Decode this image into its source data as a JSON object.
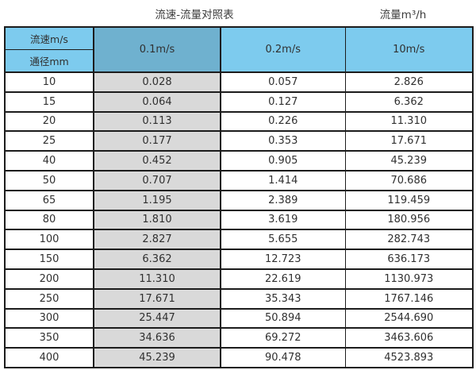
{
  "titles": {
    "main": "流速-流量对照表",
    "right": "流量m³/h"
  },
  "colors": {
    "header_blue": "#7DCBEE",
    "highlight_header_blue": "#6FB1CF",
    "highlight_column_gray": "#D9D9D9",
    "border": "#1C1C1C",
    "text": "#303030",
    "title_text": "#3A3A3A"
  },
  "chart_data": {
    "type": "table",
    "title": "流速-流量对照表",
    "right_title": "流量m³/h",
    "corner_labels": {
      "top": "流速m/s",
      "bottom": "通径mm"
    },
    "velocity_columns": [
      "0.1m/s",
      "0.2m/s",
      "10m/s"
    ],
    "highlighted_column": "0.1m/s",
    "diameters_mm": [
      10,
      15,
      20,
      25,
      40,
      50,
      65,
      80,
      100,
      150,
      200,
      250,
      300,
      350,
      400
    ],
    "series": [
      {
        "name": "0.1m/s",
        "values": [
          "0.028",
          "0.064",
          "0.113",
          "0.177",
          "0.452",
          "0.707",
          "1.195",
          "1.810",
          "2.827",
          "6.362",
          "11.310",
          "17.671",
          "25.447",
          "34.636",
          "45.239"
        ]
      },
      {
        "name": "0.2m/s",
        "values": [
          "0.057",
          "0.127",
          "0.226",
          "0.353",
          "0.905",
          "1.414",
          "2.389",
          "3.619",
          "5.655",
          "12.723",
          "22.619",
          "35.343",
          "50.894",
          "69.272",
          "90.478"
        ]
      },
      {
        "name": "10m/s",
        "values": [
          "2.826",
          "6.362",
          "11.310",
          "17.671",
          "45.239",
          "70.686",
          "119.459",
          "180.956",
          "282.743",
          "636.173",
          "1130.973",
          "1767.146",
          "2544.690",
          "3463.606",
          "4523.893"
        ]
      }
    ]
  }
}
